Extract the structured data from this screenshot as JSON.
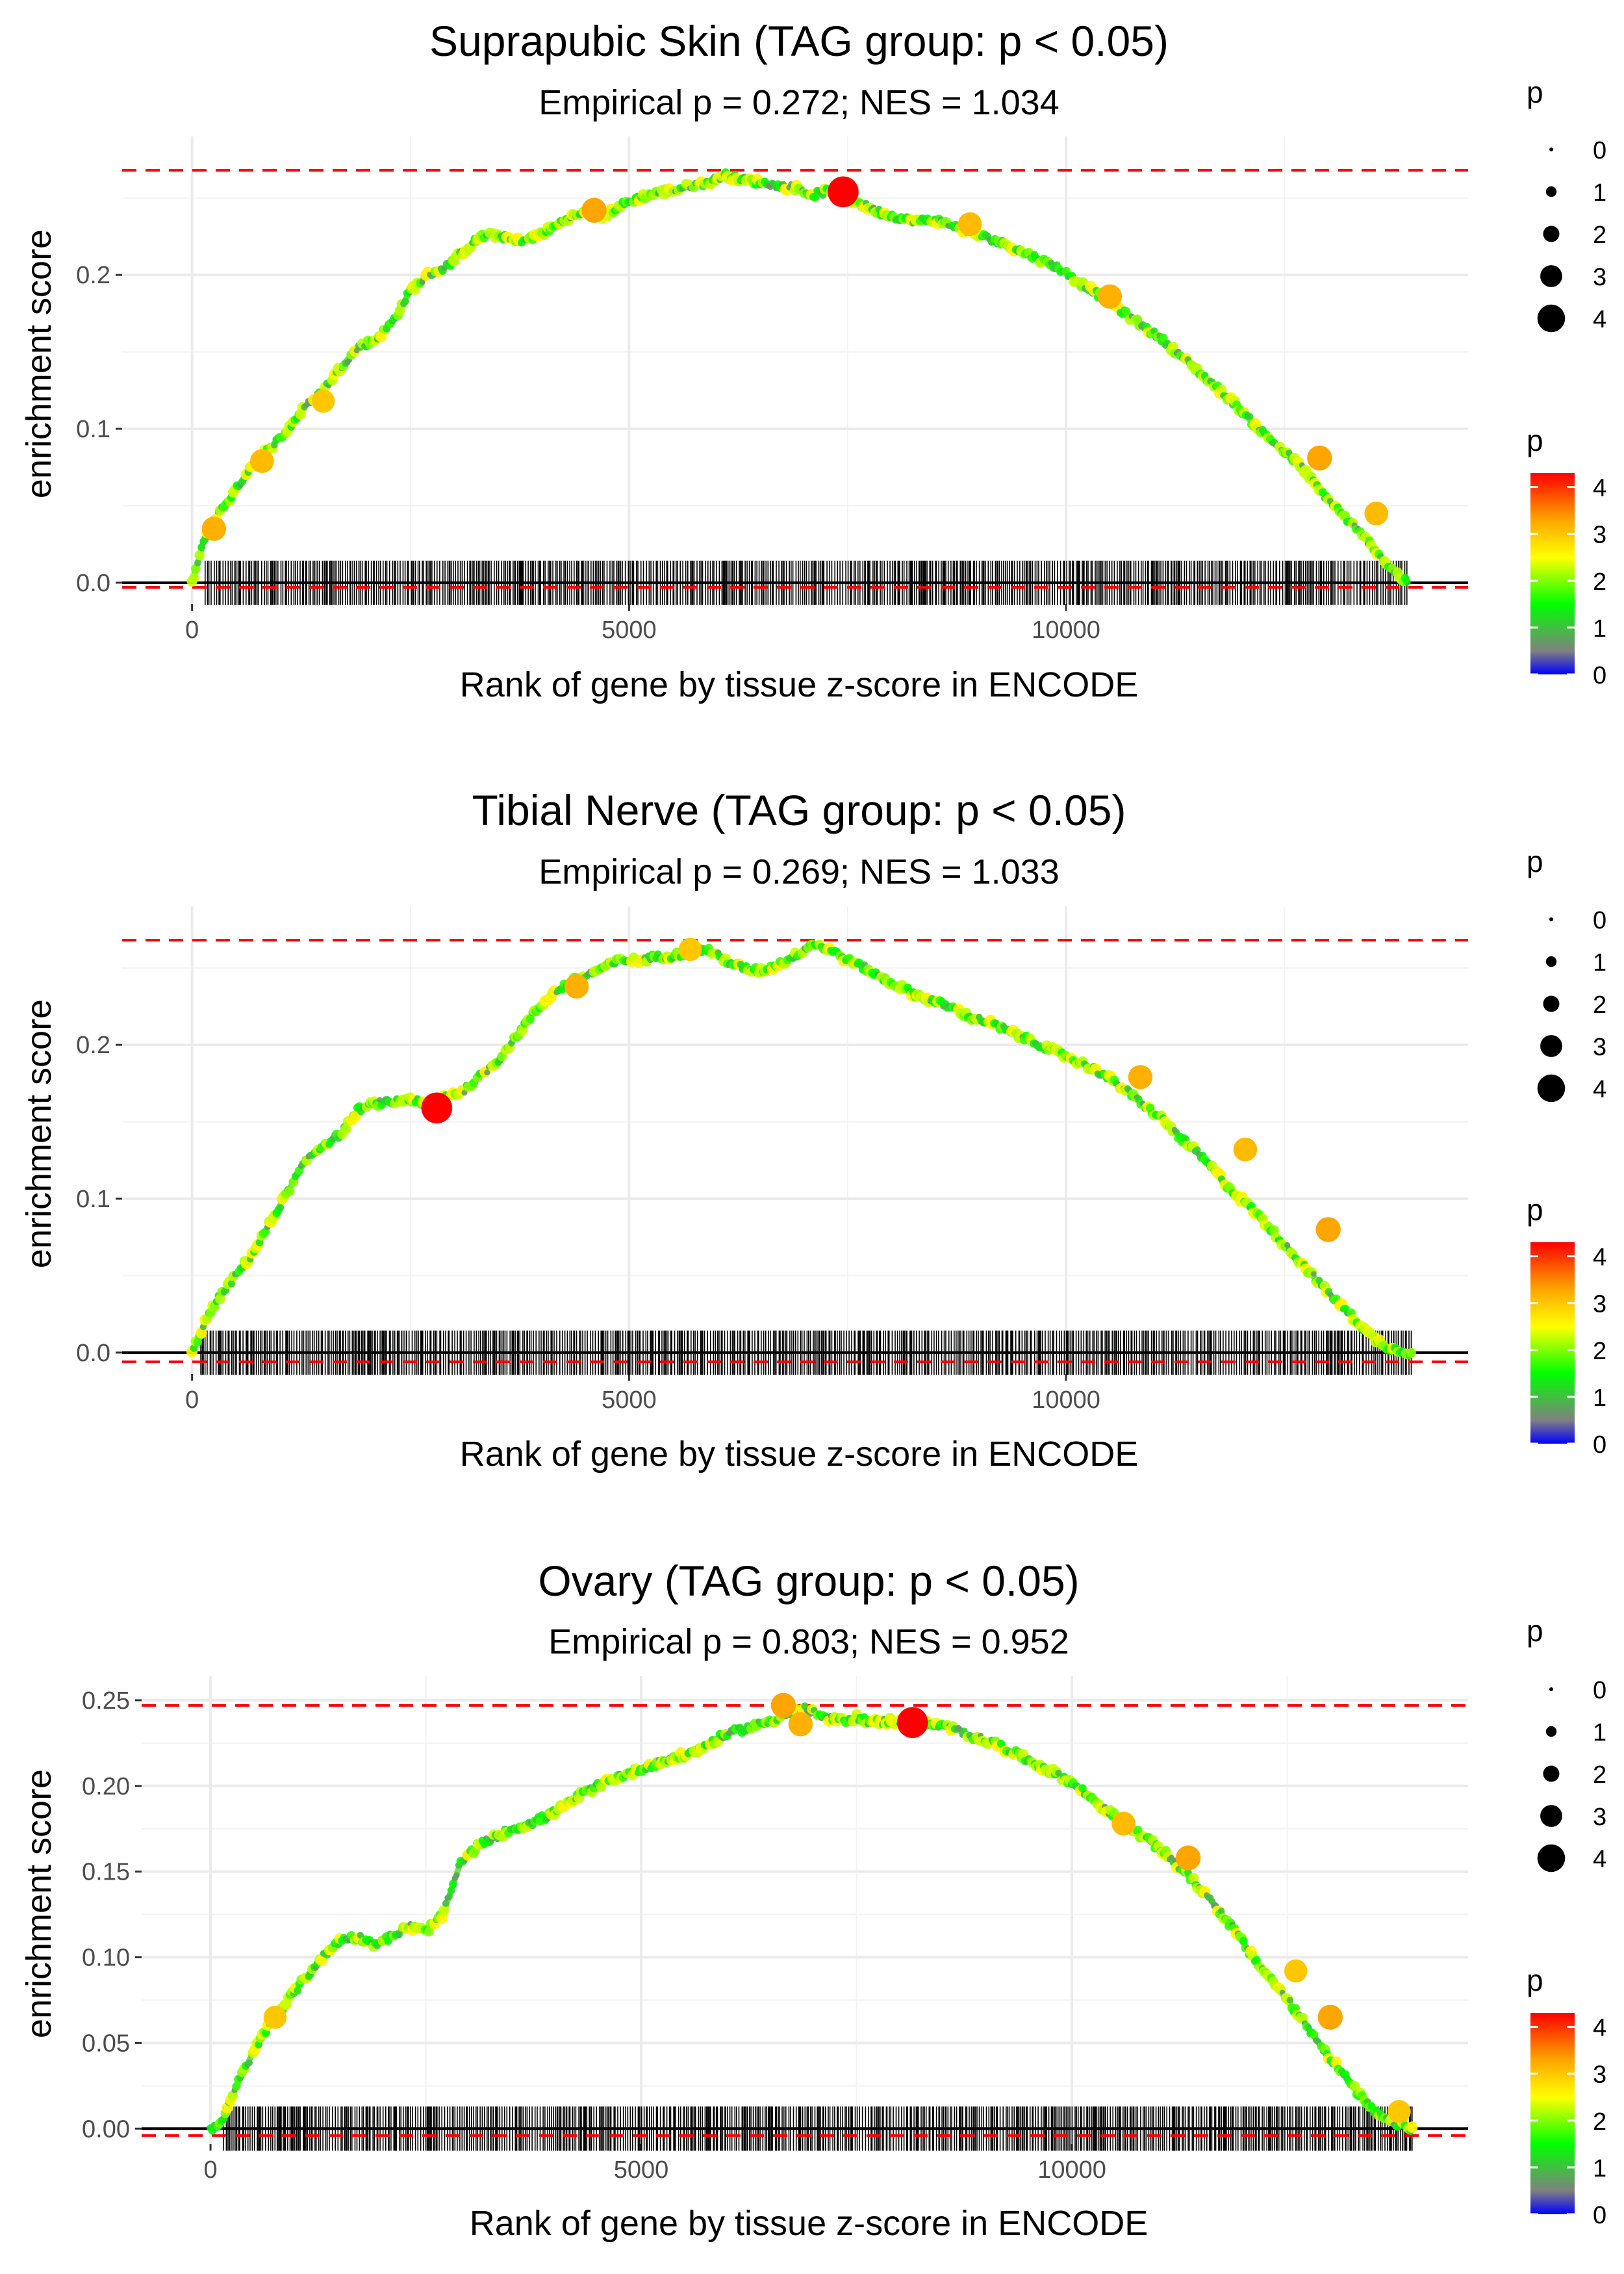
{
  "chart_data": [
    {
      "type": "line",
      "title": "Suprapubic Skin (TAG group: p < 0.05)",
      "subtitle": "Empirical p = 0.272; NES = 1.034",
      "xlabel": "Rank of gene by tissue z-score in ENCODE",
      "ylabel": "enrichment score",
      "xlim": [
        -800,
        14600
      ],
      "ylim": [
        -0.014,
        0.29
      ],
      "xticks": [
        0,
        5000,
        10000
      ],
      "xtick_labels": [
        "0",
        "5000",
        "10000"
      ],
      "yticks": [
        0.0,
        0.1,
        0.2
      ],
      "ytick_labels": [
        "0.0",
        "0.1",
        "0.2"
      ],
      "max_es_line": 0.268,
      "min_es_line": -0.003,
      "gene_rank_range": [
        150,
        13900
      ],
      "curve": {
        "x": [
          0,
          150,
          300,
          500,
          700,
          900,
          1100,
          1300,
          1500,
          1700,
          1900,
          2100,
          2300,
          2500,
          2700,
          2900,
          3100,
          3300,
          3500,
          3700,
          3900,
          4100,
          4300,
          4500,
          4700,
          4900,
          5100,
          5300,
          5500,
          5700,
          5900,
          6100,
          6300,
          6500,
          6700,
          6900,
          7100,
          7300,
          7500,
          7700,
          7900,
          8100,
          8300,
          8500,
          8700,
          8900,
          9100,
          9300,
          9500,
          9700,
          9900,
          10100,
          10300,
          10500,
          10700,
          10900,
          11100,
          11300,
          11500,
          11700,
          11900,
          12100,
          12300,
          12500,
          12700,
          12900,
          13100,
          13300,
          13500,
          13700,
          13900
        ],
        "y": [
          0.0,
          0.03,
          0.045,
          0.06,
          0.078,
          0.088,
          0.1,
          0.115,
          0.125,
          0.14,
          0.153,
          0.158,
          0.17,
          0.19,
          0.2,
          0.205,
          0.215,
          0.225,
          0.226,
          0.222,
          0.224,
          0.23,
          0.237,
          0.24,
          0.238,
          0.245,
          0.25,
          0.253,
          0.255,
          0.258,
          0.26,
          0.265,
          0.262,
          0.26,
          0.258,
          0.257,
          0.252,
          0.255,
          0.25,
          0.245,
          0.24,
          0.237,
          0.235,
          0.236,
          0.232,
          0.228,
          0.224,
          0.22,
          0.215,
          0.21,
          0.205,
          0.197,
          0.19,
          0.182,
          0.174,
          0.166,
          0.158,
          0.148,
          0.138,
          0.128,
          0.118,
          0.106,
          0.095,
          0.085,
          0.075,
          0.06,
          0.048,
          0.036,
          0.024,
          0.01,
          0.0
        ]
      },
      "highlight_points": [
        {
          "x": 250,
          "y": 0.035,
          "p": 3.2
        },
        {
          "x": 800,
          "y": 0.079,
          "p": 3.1
        },
        {
          "x": 1500,
          "y": 0.118,
          "p": 3.0
        },
        {
          "x": 4600,
          "y": 0.242,
          "p": 3.3
        },
        {
          "x": 7450,
          "y": 0.254,
          "p": 4.3
        },
        {
          "x": 8900,
          "y": 0.233,
          "p": 3.1
        },
        {
          "x": 10500,
          "y": 0.186,
          "p": 3.2
        },
        {
          "x": 12900,
          "y": 0.081,
          "p": 3.3
        },
        {
          "x": 13550,
          "y": 0.045,
          "p": 3.1
        }
      ]
    },
    {
      "type": "line",
      "title": "Tibial Nerve (TAG group: p < 0.05)",
      "subtitle": "Empirical p = 0.269; NES = 1.033",
      "xlabel": "Rank of gene by tissue z-score in ENCODE",
      "ylabel": "enrichment score",
      "xlim": [
        -800,
        14600
      ],
      "ylim": [
        -0.014,
        0.29
      ],
      "xticks": [
        0,
        5000,
        10000
      ],
      "xtick_labels": [
        "0",
        "5000",
        "10000"
      ],
      "yticks": [
        0.0,
        0.1,
        0.2
      ],
      "ytick_labels": [
        "0.0",
        "0.1",
        "0.2"
      ],
      "max_es_line": 0.268,
      "min_es_line": -0.006,
      "gene_rank_range": [
        100,
        13950
      ],
      "curve": {
        "x": [
          0,
          150,
          300,
          500,
          700,
          900,
          1100,
          1300,
          1500,
          1700,
          1900,
          2100,
          2300,
          2500,
          2700,
          2900,
          3100,
          3300,
          3500,
          3700,
          3900,
          4100,
          4300,
          4500,
          4700,
          4900,
          5100,
          5300,
          5500,
          5700,
          5900,
          6100,
          6300,
          6500,
          6700,
          6900,
          7100,
          7300,
          7500,
          7700,
          7900,
          8100,
          8300,
          8500,
          8700,
          8900,
          9100,
          9300,
          9500,
          9700,
          9900,
          10100,
          10300,
          10500,
          10700,
          10900,
          11100,
          11300,
          11500,
          11700,
          11900,
          12100,
          12300,
          12500,
          12700,
          12900,
          13100,
          13300,
          13500,
          13700,
          13950
        ],
        "y": [
          0.0,
          0.02,
          0.035,
          0.05,
          0.065,
          0.085,
          0.105,
          0.125,
          0.135,
          0.142,
          0.158,
          0.162,
          0.163,
          0.165,
          0.16,
          0.167,
          0.17,
          0.18,
          0.19,
          0.205,
          0.22,
          0.232,
          0.24,
          0.245,
          0.25,
          0.255,
          0.255,
          0.257,
          0.258,
          0.26,
          0.262,
          0.255,
          0.25,
          0.248,
          0.252,
          0.258,
          0.266,
          0.262,
          0.255,
          0.25,
          0.243,
          0.238,
          0.232,
          0.228,
          0.224,
          0.218,
          0.215,
          0.21,
          0.205,
          0.2,
          0.195,
          0.19,
          0.185,
          0.178,
          0.17,
          0.16,
          0.152,
          0.14,
          0.13,
          0.118,
          0.105,
          0.095,
          0.083,
          0.07,
          0.058,
          0.045,
          0.033,
          0.022,
          0.01,
          0.003,
          0.0
        ]
      },
      "highlight_points": [
        {
          "x": 2800,
          "y": 0.159,
          "p": 4.3
        },
        {
          "x": 4400,
          "y": 0.238,
          "p": 3.2
        },
        {
          "x": 5700,
          "y": 0.262,
          "p": 3.0
        },
        {
          "x": 10850,
          "y": 0.179,
          "p": 3.2
        },
        {
          "x": 12050,
          "y": 0.132,
          "p": 3.1
        },
        {
          "x": 13000,
          "y": 0.08,
          "p": 3.3
        }
      ]
    },
    {
      "type": "line",
      "title": "Ovary (TAG group: p < 0.05)",
      "subtitle": "Empirical p = 0.803; NES = 0.952",
      "xlabel": "Rank of gene by tissue z-score in ENCODE",
      "ylabel": "enrichment score",
      "xlim": [
        -800,
        14600
      ],
      "ylim": [
        -0.009,
        0.264
      ],
      "xticks": [
        0,
        5000,
        10000
      ],
      "xtick_labels": [
        "0",
        "5000",
        "10000"
      ],
      "yticks": [
        0.0,
        0.05,
        0.1,
        0.15,
        0.2,
        0.25
      ],
      "ytick_labels": [
        "0.00",
        "0.05",
        "0.10",
        "0.15",
        "0.20",
        "0.25"
      ],
      "max_es_line": 0.247,
      "min_es_line": -0.004,
      "gene_rank_range": [
        150,
        13950
      ],
      "curve": {
        "x": [
          0,
          150,
          300,
          500,
          700,
          900,
          1100,
          1300,
          1500,
          1700,
          1900,
          2100,
          2300,
          2500,
          2700,
          2900,
          3100,
          3300,
          3500,
          3700,
          3900,
          4100,
          4300,
          4500,
          4700,
          4900,
          5100,
          5300,
          5500,
          5700,
          5900,
          6100,
          6300,
          6500,
          6700,
          6900,
          7100,
          7300,
          7500,
          7700,
          7900,
          8100,
          8300,
          8500,
          8700,
          8900,
          9100,
          9300,
          9500,
          9700,
          9900,
          10100,
          10300,
          10500,
          10700,
          10900,
          11100,
          11300,
          11500,
          11700,
          11900,
          12100,
          12300,
          12500,
          12700,
          12900,
          13100,
          13300,
          13500,
          13700,
          13950
        ],
        "y": [
          0.0,
          0.005,
          0.025,
          0.045,
          0.062,
          0.075,
          0.088,
          0.1,
          0.11,
          0.112,
          0.108,
          0.112,
          0.118,
          0.115,
          0.125,
          0.155,
          0.165,
          0.17,
          0.175,
          0.178,
          0.182,
          0.188,
          0.195,
          0.2,
          0.205,
          0.208,
          0.212,
          0.215,
          0.218,
          0.222,
          0.228,
          0.232,
          0.235,
          0.238,
          0.242,
          0.245,
          0.24,
          0.238,
          0.24,
          0.237,
          0.238,
          0.238,
          0.236,
          0.235,
          0.232,
          0.228,
          0.225,
          0.22,
          0.215,
          0.21,
          0.205,
          0.198,
          0.19,
          0.182,
          0.175,
          0.168,
          0.16,
          0.15,
          0.14,
          0.128,
          0.115,
          0.1,
          0.088,
          0.075,
          0.062,
          0.048,
          0.035,
          0.022,
          0.01,
          0.004,
          0.0
        ]
      },
      "highlight_points": [
        {
          "x": 750,
          "y": 0.065,
          "p": 3.0
        },
        {
          "x": 6650,
          "y": 0.247,
          "p": 3.3
        },
        {
          "x": 6850,
          "y": 0.236,
          "p": 3.2
        },
        {
          "x": 8150,
          "y": 0.237,
          "p": 4.3
        },
        {
          "x": 10600,
          "y": 0.178,
          "p": 3.1
        },
        {
          "x": 11350,
          "y": 0.158,
          "p": 3.3
        },
        {
          "x": 12600,
          "y": 0.092,
          "p": 3.0
        },
        {
          "x": 13000,
          "y": 0.065,
          "p": 3.3
        },
        {
          "x": 13800,
          "y": 0.01,
          "p": 3.0
        }
      ]
    }
  ],
  "legend": {
    "size_title": "p",
    "size_labels": [
      "0",
      "1",
      "2",
      "3",
      "4"
    ],
    "color_title": "p",
    "color_labels": [
      "0",
      "1",
      "2",
      "3",
      "4"
    ],
    "color_domain": [
      0,
      4.3
    ],
    "color_stops": [
      {
        "value": 0,
        "color": "#0000ff"
      },
      {
        "value": 0.5,
        "color": "#808080"
      },
      {
        "value": 1.5,
        "color": "#00ff00"
      },
      {
        "value": 2.5,
        "color": "#ffff00"
      },
      {
        "value": 3.3,
        "color": "#ffa500"
      },
      {
        "value": 4.3,
        "color": "#ff0000"
      }
    ]
  }
}
